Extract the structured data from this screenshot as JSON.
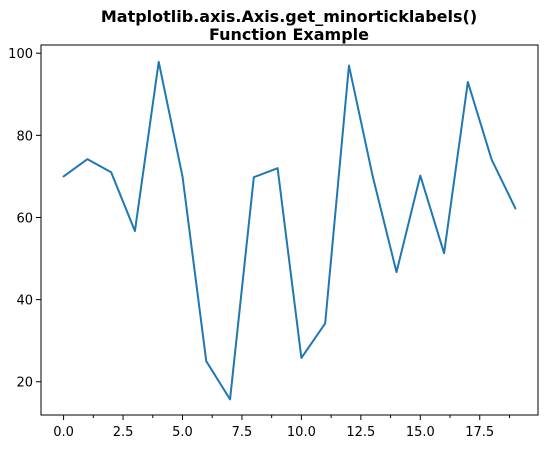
{
  "chart_data": {
    "type": "line",
    "title": "Matplotlib.axis.Axis.get_minorticklabels()",
    "subtitle": "Function Example",
    "xlabel": "",
    "ylabel": "",
    "xlim": [
      -0.95,
      19.95
    ],
    "ylim": [
      11.9,
      102.0
    ],
    "grid": false,
    "x": [
      0,
      1,
      2,
      3,
      4,
      5,
      6,
      7,
      8,
      9,
      10,
      11,
      12,
      13,
      14,
      15,
      16,
      17,
      18,
      19
    ],
    "series": [
      {
        "color": "#1f77b4",
        "values": [
          70,
          74.2,
          71,
          56.7,
          97.9,
          70,
          25,
          15.7,
          69.8,
          72,
          25.8,
          34.2,
          97,
          70,
          46.7,
          70.2,
          51.3,
          93,
          74.1,
          62.2
        ]
      }
    ],
    "x_major_ticks": [
      0.0,
      2.5,
      5.0,
      7.5,
      10.0,
      12.5,
      15.0,
      17.5
    ],
    "x_major_tick_labels": [
      "0.0",
      "2.5",
      "5.0",
      "7.5",
      "10.0",
      "12.5",
      "15.0",
      "17.5"
    ],
    "x_minor_ticks": [
      1.25,
      3.75,
      6.25,
      8.75,
      11.25,
      13.75,
      16.25,
      18.75
    ],
    "y_ticks": [
      20,
      40,
      60,
      80,
      100
    ],
    "y_tick_labels": [
      "20",
      "40",
      "60",
      "80",
      "100"
    ]
  }
}
